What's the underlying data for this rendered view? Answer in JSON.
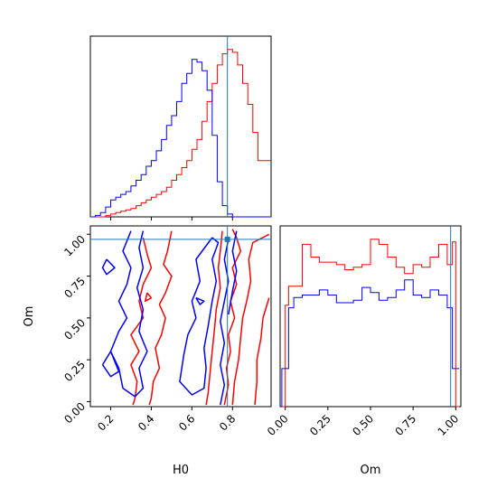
{
  "chart_data": {
    "type": "corner",
    "parameters": [
      "H0",
      "Om"
    ],
    "truth": {
      "H0": 0.775,
      "Om": 0.97
    },
    "colors": {
      "series_a": "#ff0000",
      "series_b": "#0000ff",
      "truth": "#1f77b4"
    },
    "panels": [
      {
        "id": "hist_h0",
        "type": "histogram",
        "param": "H0",
        "xlim": [
          0.1,
          0.99
        ],
        "bins": [
          0.1,
          0.125,
          0.15,
          0.175,
          0.2,
          0.225,
          0.25,
          0.275,
          0.3,
          0.325,
          0.35,
          0.375,
          0.4,
          0.425,
          0.45,
          0.475,
          0.5,
          0.525,
          0.55,
          0.575,
          0.6,
          0.625,
          0.65,
          0.675,
          0.7,
          0.725,
          0.75,
          0.775,
          0.8,
          0.825,
          0.85,
          0.875,
          0.9,
          0.925,
          0.95,
          0.975,
          0.99
        ],
        "series": [
          {
            "color": "series_a",
            "counts": [
              0,
              0,
              0,
              1,
              2,
              3,
              4,
              5,
              6,
              8,
              10,
              12,
              14,
              16,
              18,
              21,
              26,
              30,
              35,
              40,
              48,
              55,
              68,
              82,
              95,
              108,
              116,
              119,
              117,
              108,
              95,
              80,
              60,
              40,
              40,
              40
            ]
          },
          {
            "color": "series_b",
            "counts": [
              0,
              1,
              3,
              7,
              12,
              14,
              16,
              18,
              22,
              26,
              30,
              36,
              40,
              47,
              55,
              65,
              72,
              82,
              95,
              102,
              112,
              110,
              104,
              90,
              58,
              25,
              8,
              2,
              0,
              0,
              0,
              0,
              0,
              0,
              0,
              0
            ]
          }
        ]
      },
      {
        "id": "hist_om",
        "type": "histogram",
        "param": "Om",
        "xlim": [
          -0.03,
          1.03
        ],
        "bins": [
          -0.02,
          0.0,
          0.02,
          0.05,
          0.1,
          0.15,
          0.2,
          0.25,
          0.3,
          0.35,
          0.4,
          0.45,
          0.5,
          0.55,
          0.6,
          0.65,
          0.7,
          0.75,
          0.8,
          0.85,
          0.9,
          0.95,
          0.98,
          1.0,
          1.02
        ],
        "series": [
          {
            "color": "series_a",
            "counts": [
              0,
              80,
              95,
              95,
              128,
              118,
              114,
              114,
              112,
              108,
              110,
              112,
              132,
              128,
              118,
              110,
              105,
              112,
              110,
              118,
              128,
              112,
              130,
              0
            ]
          },
          {
            "color": "series_b",
            "counts": [
              30,
              30,
              78,
              86,
              88,
              88,
              92,
              88,
              82,
              82,
              84,
              94,
              90,
              84,
              86,
              92,
              100,
              88,
              86,
              92,
              88,
              78,
              30,
              30
            ]
          }
        ]
      },
      {
        "id": "joint_h0_om",
        "type": "contour",
        "xparam": "H0",
        "yparam": "Om",
        "xlim": [
          0.1,
          0.99
        ],
        "ylim": [
          -0.03,
          1.05
        ],
        "contours": [
          {
            "color": "series_a",
            "points": [
              [
                0.75,
                1.02
              ],
              [
                0.74,
                0.9
              ],
              [
                0.73,
                0.8
              ],
              [
                0.74,
                0.68
              ],
              [
                0.72,
                0.55
              ],
              [
                0.71,
                0.42
              ],
              [
                0.7,
                0.3
              ],
              [
                0.69,
                0.18
              ],
              [
                0.68,
                0.05
              ],
              [
                0.67,
                -0.02
              ]
            ]
          },
          {
            "color": "series_a",
            "points": [
              [
                0.98,
                1.0
              ],
              [
                0.9,
                0.95
              ],
              [
                0.88,
                0.85
              ],
              [
                0.89,
                0.72
              ],
              [
                0.87,
                0.6
              ],
              [
                0.85,
                0.5
              ],
              [
                0.84,
                0.38
              ],
              [
                0.83,
                0.25
              ],
              [
                0.81,
                0.12
              ],
              [
                0.8,
                -0.02
              ]
            ]
          },
          {
            "color": "series_a",
            "points": [
              [
                0.98,
                0.62
              ],
              [
                0.95,
                0.5
              ],
              [
                0.94,
                0.38
              ],
              [
                0.92,
                0.25
              ],
              [
                0.92,
                0.12
              ],
              [
                0.91,
                -0.02
              ]
            ]
          },
          {
            "color": "series_a",
            "points": [
              [
                0.5,
                1.02
              ],
              [
                0.48,
                0.9
              ],
              [
                0.46,
                0.82
              ],
              [
                0.5,
                0.75
              ],
              [
                0.47,
                0.65
              ],
              [
                0.44,
                0.58
              ],
              [
                0.47,
                0.5
              ],
              [
                0.45,
                0.4
              ],
              [
                0.42,
                0.32
              ],
              [
                0.44,
                0.2
              ],
              [
                0.41,
                0.12
              ],
              [
                0.4,
                0.02
              ],
              [
                0.39,
                -0.02
              ]
            ]
          },
          {
            "color": "series_a",
            "points": [
              [
                0.36,
                0.98
              ],
              [
                0.38,
                0.88
              ],
              [
                0.4,
                0.8
              ],
              [
                0.36,
                0.7
              ],
              [
                0.34,
                0.6
              ],
              [
                0.36,
                0.5
              ],
              [
                0.3,
                0.4
              ],
              [
                0.34,
                0.3
              ],
              [
                0.3,
                0.22
              ],
              [
                0.33,
                0.12
              ],
              [
                0.32,
                0.02
              ],
              [
                0.31,
                -0.02
              ]
            ]
          },
          {
            "color": "series_a",
            "points": [
              [
                0.8,
                1.03
              ],
              [
                0.82,
                0.98
              ],
              [
                0.84,
                0.9
              ],
              [
                0.8,
                0.8
              ],
              [
                0.82,
                0.7
              ],
              [
                0.79,
                0.6
              ],
              [
                0.81,
                0.5
              ],
              [
                0.78,
                0.4
              ],
              [
                0.79,
                0.3
              ],
              [
                0.77,
                0.2
              ],
              [
                0.78,
                0.1
              ],
              [
                0.76,
                -0.02
              ]
            ]
          },
          {
            "color": "series_b",
            "points": [
              [
                0.7,
                0.98
              ],
              [
                0.62,
                0.85
              ],
              [
                0.64,
                0.72
              ],
              [
                0.6,
                0.6
              ],
              [
                0.62,
                0.5
              ],
              [
                0.58,
                0.4
              ],
              [
                0.56,
                0.28
              ],
              [
                0.54,
                0.12
              ],
              [
                0.6,
                0.04
              ],
              [
                0.66,
                0.08
              ],
              [
                0.67,
                0.2
              ],
              [
                0.66,
                0.32
              ],
              [
                0.68,
                0.45
              ],
              [
                0.7,
                0.6
              ],
              [
                0.72,
                0.72
              ],
              [
                0.7,
                0.85
              ],
              [
                0.73,
                0.95
              ],
              [
                0.7,
                0.98
              ]
            ]
          },
          {
            "color": "series_b",
            "points": [
              [
                0.3,
                1.02
              ],
              [
                0.26,
                0.9
              ],
              [
                0.3,
                0.8
              ],
              [
                0.28,
                0.7
              ],
              [
                0.24,
                0.6
              ],
              [
                0.28,
                0.5
              ],
              [
                0.24,
                0.42
              ],
              [
                0.2,
                0.3
              ],
              [
                0.24,
                0.2
              ],
              [
                0.26,
                0.08
              ],
              [
                0.32,
                0.03
              ],
              [
                0.36,
                0.08
              ],
              [
                0.34,
                0.2
              ],
              [
                0.38,
                0.3
              ],
              [
                0.34,
                0.42
              ],
              [
                0.36,
                0.55
              ],
              [
                0.33,
                0.68
              ],
              [
                0.36,
                0.8
              ],
              [
                0.34,
                0.92
              ],
              [
                0.36,
                1.02
              ]
            ]
          },
          {
            "color": "series_b",
            "points": [
              [
                0.78,
                0.97
              ],
              [
                0.76,
                0.85
              ],
              [
                0.78,
                0.72
              ],
              [
                0.76,
                0.6
              ],
              [
                0.74,
                0.48
              ],
              [
                0.76,
                0.35
              ],
              [
                0.74,
                0.22
              ],
              [
                0.76,
                0.1
              ],
              [
                0.74,
                -0.02
              ]
            ]
          },
          {
            "color": "series_b",
            "points": [
              [
                0.82,
                1.02
              ],
              [
                0.8,
                0.9
              ],
              [
                0.82,
                0.78
              ],
              [
                0.8,
                0.66
              ],
              [
                0.78,
                0.52
              ]
            ]
          },
          {
            "color": "series_b",
            "points": [
              [
                0.18,
                0.85
              ],
              [
                0.22,
                0.8
              ],
              [
                0.18,
                0.76
              ],
              [
                0.16,
                0.8
              ],
              [
                0.18,
                0.85
              ]
            ]
          },
          {
            "color": "series_b",
            "points": [
              [
                0.16,
                0.22
              ],
              [
                0.2,
                0.3
              ],
              [
                0.24,
                0.18
              ],
              [
                0.2,
                0.15
              ],
              [
                0.16,
                0.22
              ]
            ]
          },
          {
            "color": "series_b",
            "points": [
              [
                0.62,
                0.62
              ],
              [
                0.66,
                0.6
              ],
              [
                0.64,
                0.58
              ],
              [
                0.62,
                0.62
              ]
            ]
          },
          {
            "color": "series_a",
            "points": [
              [
                0.38,
                0.65
              ],
              [
                0.4,
                0.62
              ],
              [
                0.37,
                0.6
              ],
              [
                0.38,
                0.65
              ]
            ]
          }
        ]
      }
    ],
    "ticks": {
      "H0": [
        0.2,
        0.4,
        0.6,
        0.8
      ],
      "H0_labels": [
        "0.2",
        "0.4",
        "0.6",
        "0.8"
      ],
      "Om": [
        0.0,
        0.25,
        0.5,
        0.75,
        1.0
      ],
      "Om_labels": [
        "0.00",
        "0.25",
        "0.50",
        "0.75",
        "1.00"
      ]
    },
    "xlabel_h0": "H0",
    "xlabel_om": "Om",
    "ylabel_om": "Om"
  }
}
